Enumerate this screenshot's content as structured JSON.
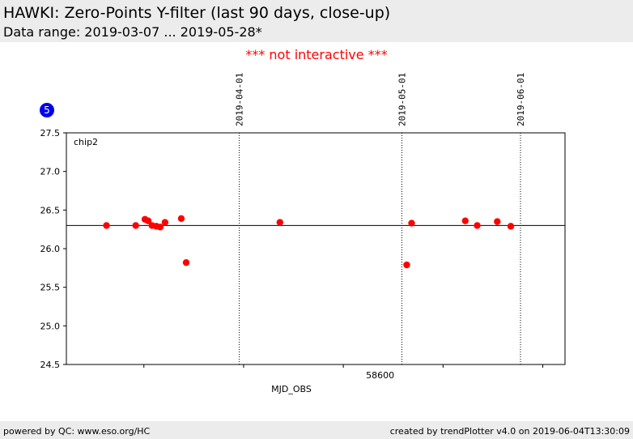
{
  "header": {
    "title": "HAWKI: Zero-Points Y-filter (last 90 days, close-up)",
    "subtitle": "Data range: 2019-03-07 ... 2019-05-28*"
  },
  "notice": "*** not interactive ***",
  "badge": "5",
  "footer": {
    "left": "powered by QC: www.eso.org/HC",
    "right": "created by trendPlotter v4.0 on 2019-06-04T13:30:09"
  },
  "colors": {
    "points": "#ff0000",
    "notice": "#ff0000",
    "badge": "#0000ee",
    "header_bg": "#ececec"
  },
  "chart_data": {
    "type": "scatter",
    "panel_label": "chip2",
    "xlabel": "MJD_OBS",
    "xlim": [
      58542.1,
      58634.1
    ],
    "ylim": [
      24.5,
      27.5
    ],
    "y_ticks": [
      24.5,
      25.0,
      25.5,
      26.0,
      26.5,
      27.0,
      27.5
    ],
    "y_tick_labels": [
      "24.5",
      "25.0",
      "25.5",
      "26.0",
      "26.5",
      "27.0",
      "27.5"
    ],
    "x_ticks": [
      58556.4,
      58574.8,
      58593.2,
      58611.6,
      58630.0
    ],
    "x_tick_labels": [
      {
        "value": 58600,
        "label": "58600"
      }
    ],
    "date_markers": [
      {
        "label": "2019-04-01",
        "mjd": 58574.0
      },
      {
        "label": "2019-05-01",
        "mjd": 58604.0
      },
      {
        "label": "2019-06-01",
        "mjd": 58635.0
      }
    ],
    "reference_line": 26.3,
    "grid": false,
    "points": [
      {
        "x": 58549.5,
        "y": 26.3
      },
      {
        "x": 58554.9,
        "y": 26.3
      },
      {
        "x": 58556.6,
        "y": 26.38
      },
      {
        "x": 58557.2,
        "y": 26.36
      },
      {
        "x": 58557.9,
        "y": 26.3
      },
      {
        "x": 58558.7,
        "y": 26.29
      },
      {
        "x": 58559.4,
        "y": 26.28
      },
      {
        "x": 58560.3,
        "y": 26.34
      },
      {
        "x": 58563.3,
        "y": 26.39
      },
      {
        "x": 58564.2,
        "y": 25.82
      },
      {
        "x": 58581.5,
        "y": 26.34
      },
      {
        "x": 58604.9,
        "y": 25.79
      },
      {
        "x": 58605.8,
        "y": 26.33
      },
      {
        "x": 58615.7,
        "y": 26.36
      },
      {
        "x": 58617.9,
        "y": 26.3
      },
      {
        "x": 58621.6,
        "y": 26.35
      },
      {
        "x": 58624.1,
        "y": 26.29
      }
    ]
  }
}
